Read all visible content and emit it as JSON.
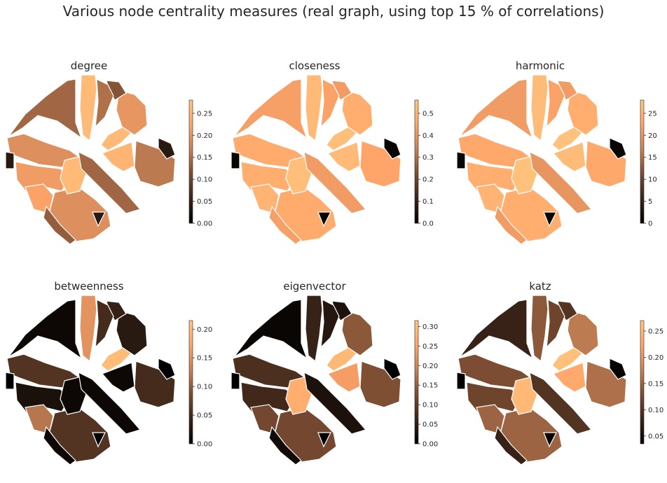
{
  "figure": {
    "title": "Various node centrality measures (real graph, using top 15 % of correlations)",
    "colormap": [
      "#000000",
      "#3a2418",
      "#7a4c32",
      "#c78256",
      "#ffa46a",
      "#ffc77f"
    ],
    "boundary_color": "#ffffff"
  },
  "chart_data": [
    {
      "type": "heatmap",
      "title": "degree",
      "vmin": 0,
      "vmax": 0.28,
      "ticks": [
        "0.00",
        "0.05",
        "0.10",
        "0.15",
        "0.20",
        "0.25"
      ],
      "tick_values": [
        0,
        0.05,
        0.1,
        0.15,
        0.2,
        0.25
      ],
      "regions": {
        "top_strip": 0.26,
        "upper_left": 0.14,
        "upper_mid": 0.15,
        "upper_right_small": 0.12,
        "right_upper": 0.2,
        "right_lower": 0.16,
        "center_bright": 0.26,
        "center_core": 0.25,
        "left_mid": 0.19,
        "left_lower": 0.21,
        "lower_center_bright": 0.26,
        "lower_left": 0.22,
        "bottom": 0.19,
        "bottom_left_edge": 0.13,
        "diagonal_band": 0.14,
        "small_dark": 0.04
      }
    },
    {
      "type": "heatmap",
      "title": "closeness",
      "vmin": 0,
      "vmax": 0.56,
      "ticks": [
        "0.0",
        "0.1",
        "0.2",
        "0.3",
        "0.4",
        "0.5"
      ],
      "tick_values": [
        0,
        0.1,
        0.2,
        0.3,
        0.4,
        0.5
      ],
      "regions": {
        "top_strip": 0.52,
        "upper_left": 0.43,
        "upper_mid": 0.44,
        "upper_right_small": 0.42,
        "right_upper": 0.48,
        "right_lower": 0.45,
        "center_bright": 0.53,
        "center_core": 0.52,
        "left_mid": 0.47,
        "left_lower": 0.48,
        "lower_center_bright": 0.53,
        "lower_left": 0.5,
        "bottom": 0.47,
        "bottom_left_edge": 0.43,
        "diagonal_band": 0.42,
        "small_dark": 0.02
      }
    },
    {
      "type": "heatmap",
      "title": "harmonic",
      "vmin": 0,
      "vmax": 28,
      "ticks": [
        "0",
        "5",
        "10",
        "15",
        "20",
        "25"
      ],
      "tick_values": [
        0,
        5,
        10,
        15,
        20,
        25
      ],
      "regions": {
        "top_strip": 26,
        "upper_left": 21,
        "upper_mid": 22,
        "upper_right_small": 21,
        "right_upper": 24,
        "right_lower": 23,
        "center_bright": 27,
        "center_core": 26,
        "left_mid": 23,
        "left_lower": 24,
        "lower_center_bright": 27,
        "lower_left": 25,
        "bottom": 24,
        "bottom_left_edge": 21,
        "diagonal_band": 20,
        "small_dark": 1
      }
    },
    {
      "type": "heatmap",
      "title": "betweenness",
      "vmin": 0,
      "vmax": 0.215,
      "ticks": [
        "0.00",
        "0.05",
        "0.10",
        "0.15",
        "0.20"
      ],
      "tick_values": [
        0,
        0.05,
        0.1,
        0.15,
        0.2
      ],
      "regions": {
        "top_strip": 0.15,
        "upper_left": 0.01,
        "upper_mid": 0.05,
        "upper_right_small": 0.04,
        "right_upper": 0.03,
        "right_lower": 0.05,
        "center_bright": 0.2,
        "center_core": 0.01,
        "left_mid": 0.06,
        "left_lower": 0.02,
        "lower_center_bright": 0.01,
        "lower_left": 0.12,
        "bottom": 0.06,
        "bottom_left_edge": 0.01,
        "diagonal_band": 0.01,
        "small_dark": 0.0
      }
    },
    {
      "type": "heatmap",
      "title": "eigenvector",
      "vmin": 0,
      "vmax": 0.315,
      "ticks": [
        "0.00",
        "0.05",
        "0.10",
        "0.15",
        "0.20",
        "0.25",
        "0.30"
      ],
      "tick_values": [
        0,
        0.05,
        0.1,
        0.15,
        0.2,
        0.25,
        0.3
      ],
      "regions": {
        "top_strip": 0.06,
        "upper_left": 0.01,
        "upper_mid": 0.04,
        "upper_right_small": 0.03,
        "right_upper": 0.14,
        "right_lower": 0.13,
        "center_bright": 0.29,
        "center_core": 0.24,
        "left_mid": 0.08,
        "left_lower": 0.07,
        "lower_center_bright": 0.27,
        "lower_left": 0.12,
        "bottom": 0.12,
        "bottom_left_edge": 0.02,
        "diagonal_band": 0.03,
        "small_dark": 0.0
      }
    },
    {
      "type": "heatmap",
      "title": "katz",
      "vmin": 0.035,
      "vmax": 0.27,
      "ticks": [
        "0.05",
        "0.10",
        "0.15",
        "0.20",
        "0.25"
      ],
      "tick_values": [
        0.05,
        0.1,
        0.15,
        0.2,
        0.25
      ],
      "regions": {
        "top_strip": 0.14,
        "upper_left": 0.08,
        "upper_mid": 0.12,
        "upper_right_small": 0.1,
        "right_upper": 0.17,
        "right_lower": 0.16,
        "center_bright": 0.26,
        "center_core": 0.23,
        "left_mid": 0.13,
        "left_lower": 0.12,
        "lower_center_bright": 0.25,
        "lower_left": 0.15,
        "bottom": 0.15,
        "bottom_left_edge": 0.08,
        "diagonal_band": 0.1,
        "small_dark": 0.04
      }
    }
  ]
}
